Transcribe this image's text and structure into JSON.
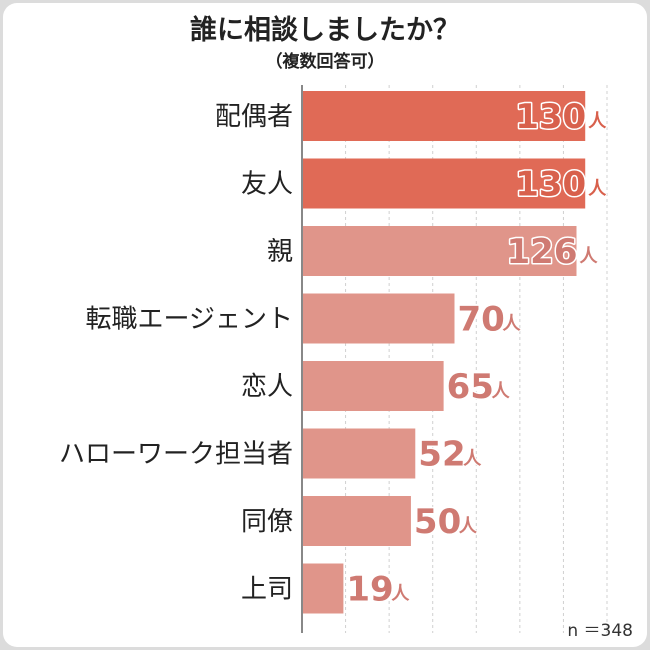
{
  "chart_data": {
    "type": "bar",
    "orientation": "horizontal",
    "title": "誰に相談しましたか？",
    "subtitle": "（複数回答可）",
    "categories": [
      "配偶者",
      "友人",
      "親",
      "転職エージェント",
      "恋人",
      "ハローワーク担当者",
      "同僚",
      "上司"
    ],
    "values": [
      130,
      130,
      126,
      70,
      65,
      52,
      50,
      19
    ],
    "value_unit": "人",
    "xlim": [
      0,
      140
    ],
    "grid": true,
    "colors": {
      "highlight": "#e06a56",
      "normal": "#e0958a",
      "label_highlight": "#d8604c",
      "label_normal": "#cf7a72"
    },
    "highlight_count": 2,
    "note": "n ＝348"
  }
}
